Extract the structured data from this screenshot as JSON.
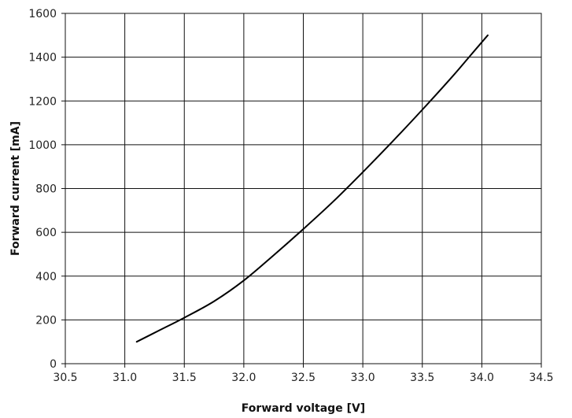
{
  "chart_data": {
    "type": "line",
    "title": "",
    "xlabel": "Forward voltage [V]",
    "ylabel": "Forward current [mA]",
    "xlim": [
      30.5,
      34.5
    ],
    "ylim": [
      0,
      1600
    ],
    "x_ticks": [
      "30.5",
      "31.0",
      "31.5",
      "32.0",
      "32.5",
      "33.0",
      "33.5",
      "34.0",
      "34.5"
    ],
    "y_ticks": [
      "0",
      "200",
      "400",
      "600",
      "800",
      "1000",
      "1200",
      "1400",
      "1600"
    ],
    "grid": true,
    "colors": {
      "line": "#000000",
      "grid": "#111111"
    },
    "series": [
      {
        "x": [
          31.1,
          31.3,
          31.5,
          31.75,
          32.0,
          32.25,
          32.5,
          32.75,
          33.0,
          33.25,
          33.5,
          33.75,
          33.9,
          34.05
        ],
        "y": [
          100,
          155,
          210,
          285,
          380,
          495,
          615,
          740,
          875,
          1015,
          1160,
          1310,
          1405,
          1500
        ]
      }
    ]
  }
}
